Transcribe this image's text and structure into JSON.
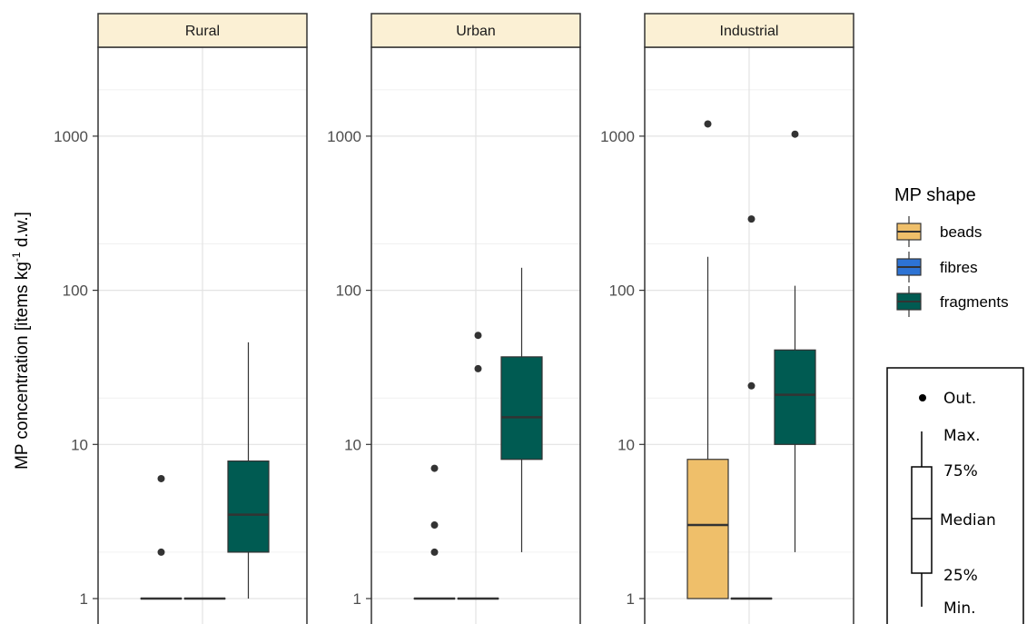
{
  "chart_data": {
    "type": "boxplot",
    "y_scale": "log10",
    "ylim": [
      1,
      3500
    ],
    "y_ticks": [
      1,
      10,
      100,
      1000
    ],
    "y_tick_labels": [
      "1",
      "10",
      "100",
      "1000"
    ],
    "ylabel_main": "MP concentration [items kg",
    "ylabel_sup": "-1",
    "ylabel_end": " d.w.]",
    "xlabel": "",
    "grid": true,
    "panel_strip_color": "#fbf0d4",
    "facets": [
      {
        "name": "Rural",
        "boxes": [
          {
            "series": "beads",
            "min": 1,
            "q1": 1,
            "median": 1,
            "q3": 1,
            "max": 1,
            "outliers": [
              2,
              6
            ]
          },
          {
            "series": "fibres",
            "min": 1,
            "q1": 1,
            "median": 1,
            "q3": 1,
            "max": 1,
            "outliers": []
          },
          {
            "series": "fragments",
            "min": 1,
            "q1": 2,
            "median": 3.5,
            "q3": 7.8,
            "max": 46,
            "outliers": []
          }
        ]
      },
      {
        "name": "Urban",
        "boxes": [
          {
            "series": "beads",
            "min": 1,
            "q1": 1,
            "median": 1,
            "q3": 1,
            "max": 1,
            "outliers": [
              2,
              3,
              7
            ]
          },
          {
            "series": "fibres",
            "min": 1,
            "q1": 1,
            "median": 1,
            "q3": 1,
            "max": 1,
            "outliers": [
              31,
              51
            ]
          },
          {
            "series": "fragments",
            "min": 2,
            "q1": 8,
            "median": 15,
            "q3": 37,
            "max": 140,
            "outliers": []
          }
        ]
      },
      {
        "name": "Industrial",
        "boxes": [
          {
            "series": "beads",
            "min": 1,
            "q1": 1,
            "median": 3,
            "q3": 8,
            "max": 165,
            "outliers": [
              1200
            ]
          },
          {
            "series": "fibres",
            "min": 1,
            "q1": 1,
            "median": 1,
            "q3": 1,
            "max": 1,
            "outliers": [
              24,
              290
            ]
          },
          {
            "series": "fragments",
            "min": 2,
            "q1": 10,
            "median": 21,
            "q3": 41,
            "max": 107,
            "outliers": [
              1030
            ]
          }
        ]
      }
    ],
    "legend": {
      "title": "MP shape",
      "position": "right",
      "entries": [
        {
          "label": "beads",
          "color": "#efbf6a"
        },
        {
          "label": "fibres",
          "color": "#2d73d4"
        },
        {
          "label": "fragments",
          "color": "#005b52"
        }
      ]
    },
    "key": {
      "out": "Out.",
      "max": "Max.",
      "q3": "75%",
      "median": "Median",
      "q1": "25%",
      "min": "Min."
    }
  }
}
